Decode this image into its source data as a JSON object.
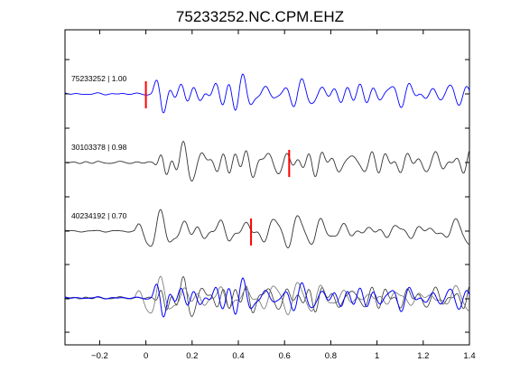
{
  "chart_data": {
    "type": "line",
    "title": "75233252.NC.CPM.EHZ",
    "xlabel": "",
    "ylabel": "",
    "xlim": [
      -0.35,
      1.4
    ],
    "x_ticks": [
      -0.2,
      0,
      0.2,
      0.4,
      0.6,
      0.8,
      1.0,
      1.2,
      1.4
    ],
    "x_tick_labels": [
      "−0.2",
      "0",
      "0.2",
      "0.4",
      "0.6",
      "0.8",
      "1",
      "1.2",
      "1.4"
    ],
    "grid": false,
    "traces": [
      {
        "label": "75233252 | 1.00",
        "pick_time": 0.0,
        "color": "#0000ff"
      },
      {
        "label": "30103378 | 0.98",
        "pick_time": 0.62,
        "color": "#333333"
      },
      {
        "label": "40234192 | 0.70",
        "pick_time": 0.455,
        "color": "#333333"
      }
    ],
    "pick_color": "#ff0000",
    "overlay_colors": [
      "#333333",
      "#707070",
      "#0000ff"
    ]
  }
}
